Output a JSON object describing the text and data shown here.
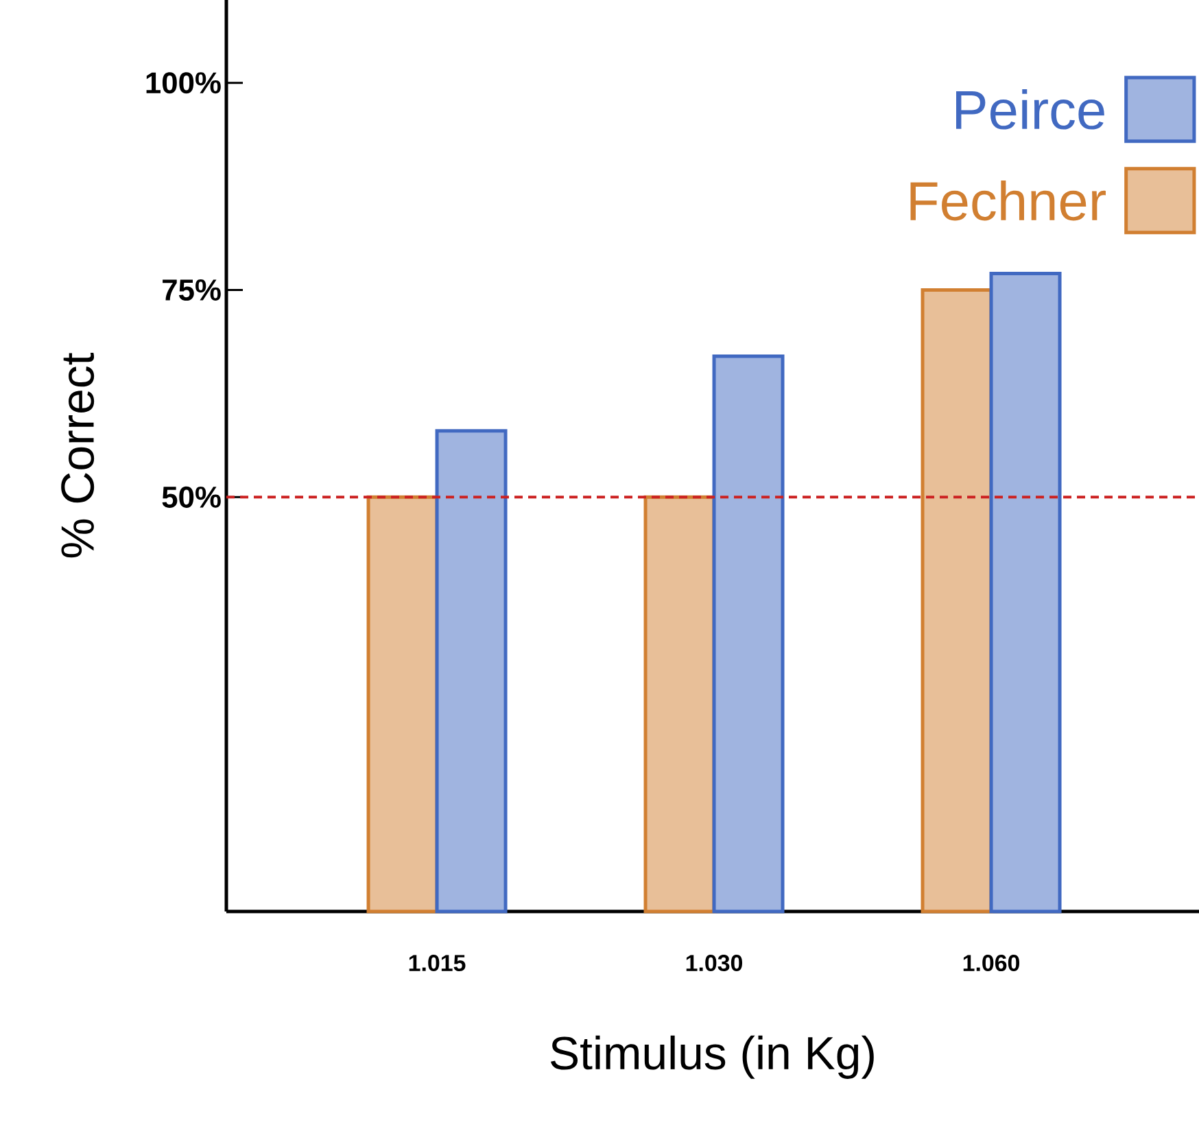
{
  "chart_data": {
    "type": "bar",
    "xlabel": "Stimulus (in Kg)",
    "ylabel": "% Correct",
    "categories": [
      "1.015",
      "1.030",
      "1.060"
    ],
    "series": [
      {
        "name": "Fechner",
        "color": "#e8bf98",
        "values": [
          50,
          50,
          75
        ]
      },
      {
        "name": "Peirce",
        "color": "#a0b4e0",
        "values": [
          58,
          67,
          77
        ]
      }
    ],
    "ylim": [
      0,
      110
    ],
    "yticks": [
      {
        "value": 50,
        "label": "50%"
      },
      {
        "value": 75,
        "label": "75%"
      },
      {
        "value": 100,
        "label": "100%"
      }
    ],
    "ref_lines": [
      {
        "axis": "y",
        "value": 50,
        "color": "#cc2222",
        "line_style": "dashed"
      }
    ],
    "legend": "top right"
  }
}
